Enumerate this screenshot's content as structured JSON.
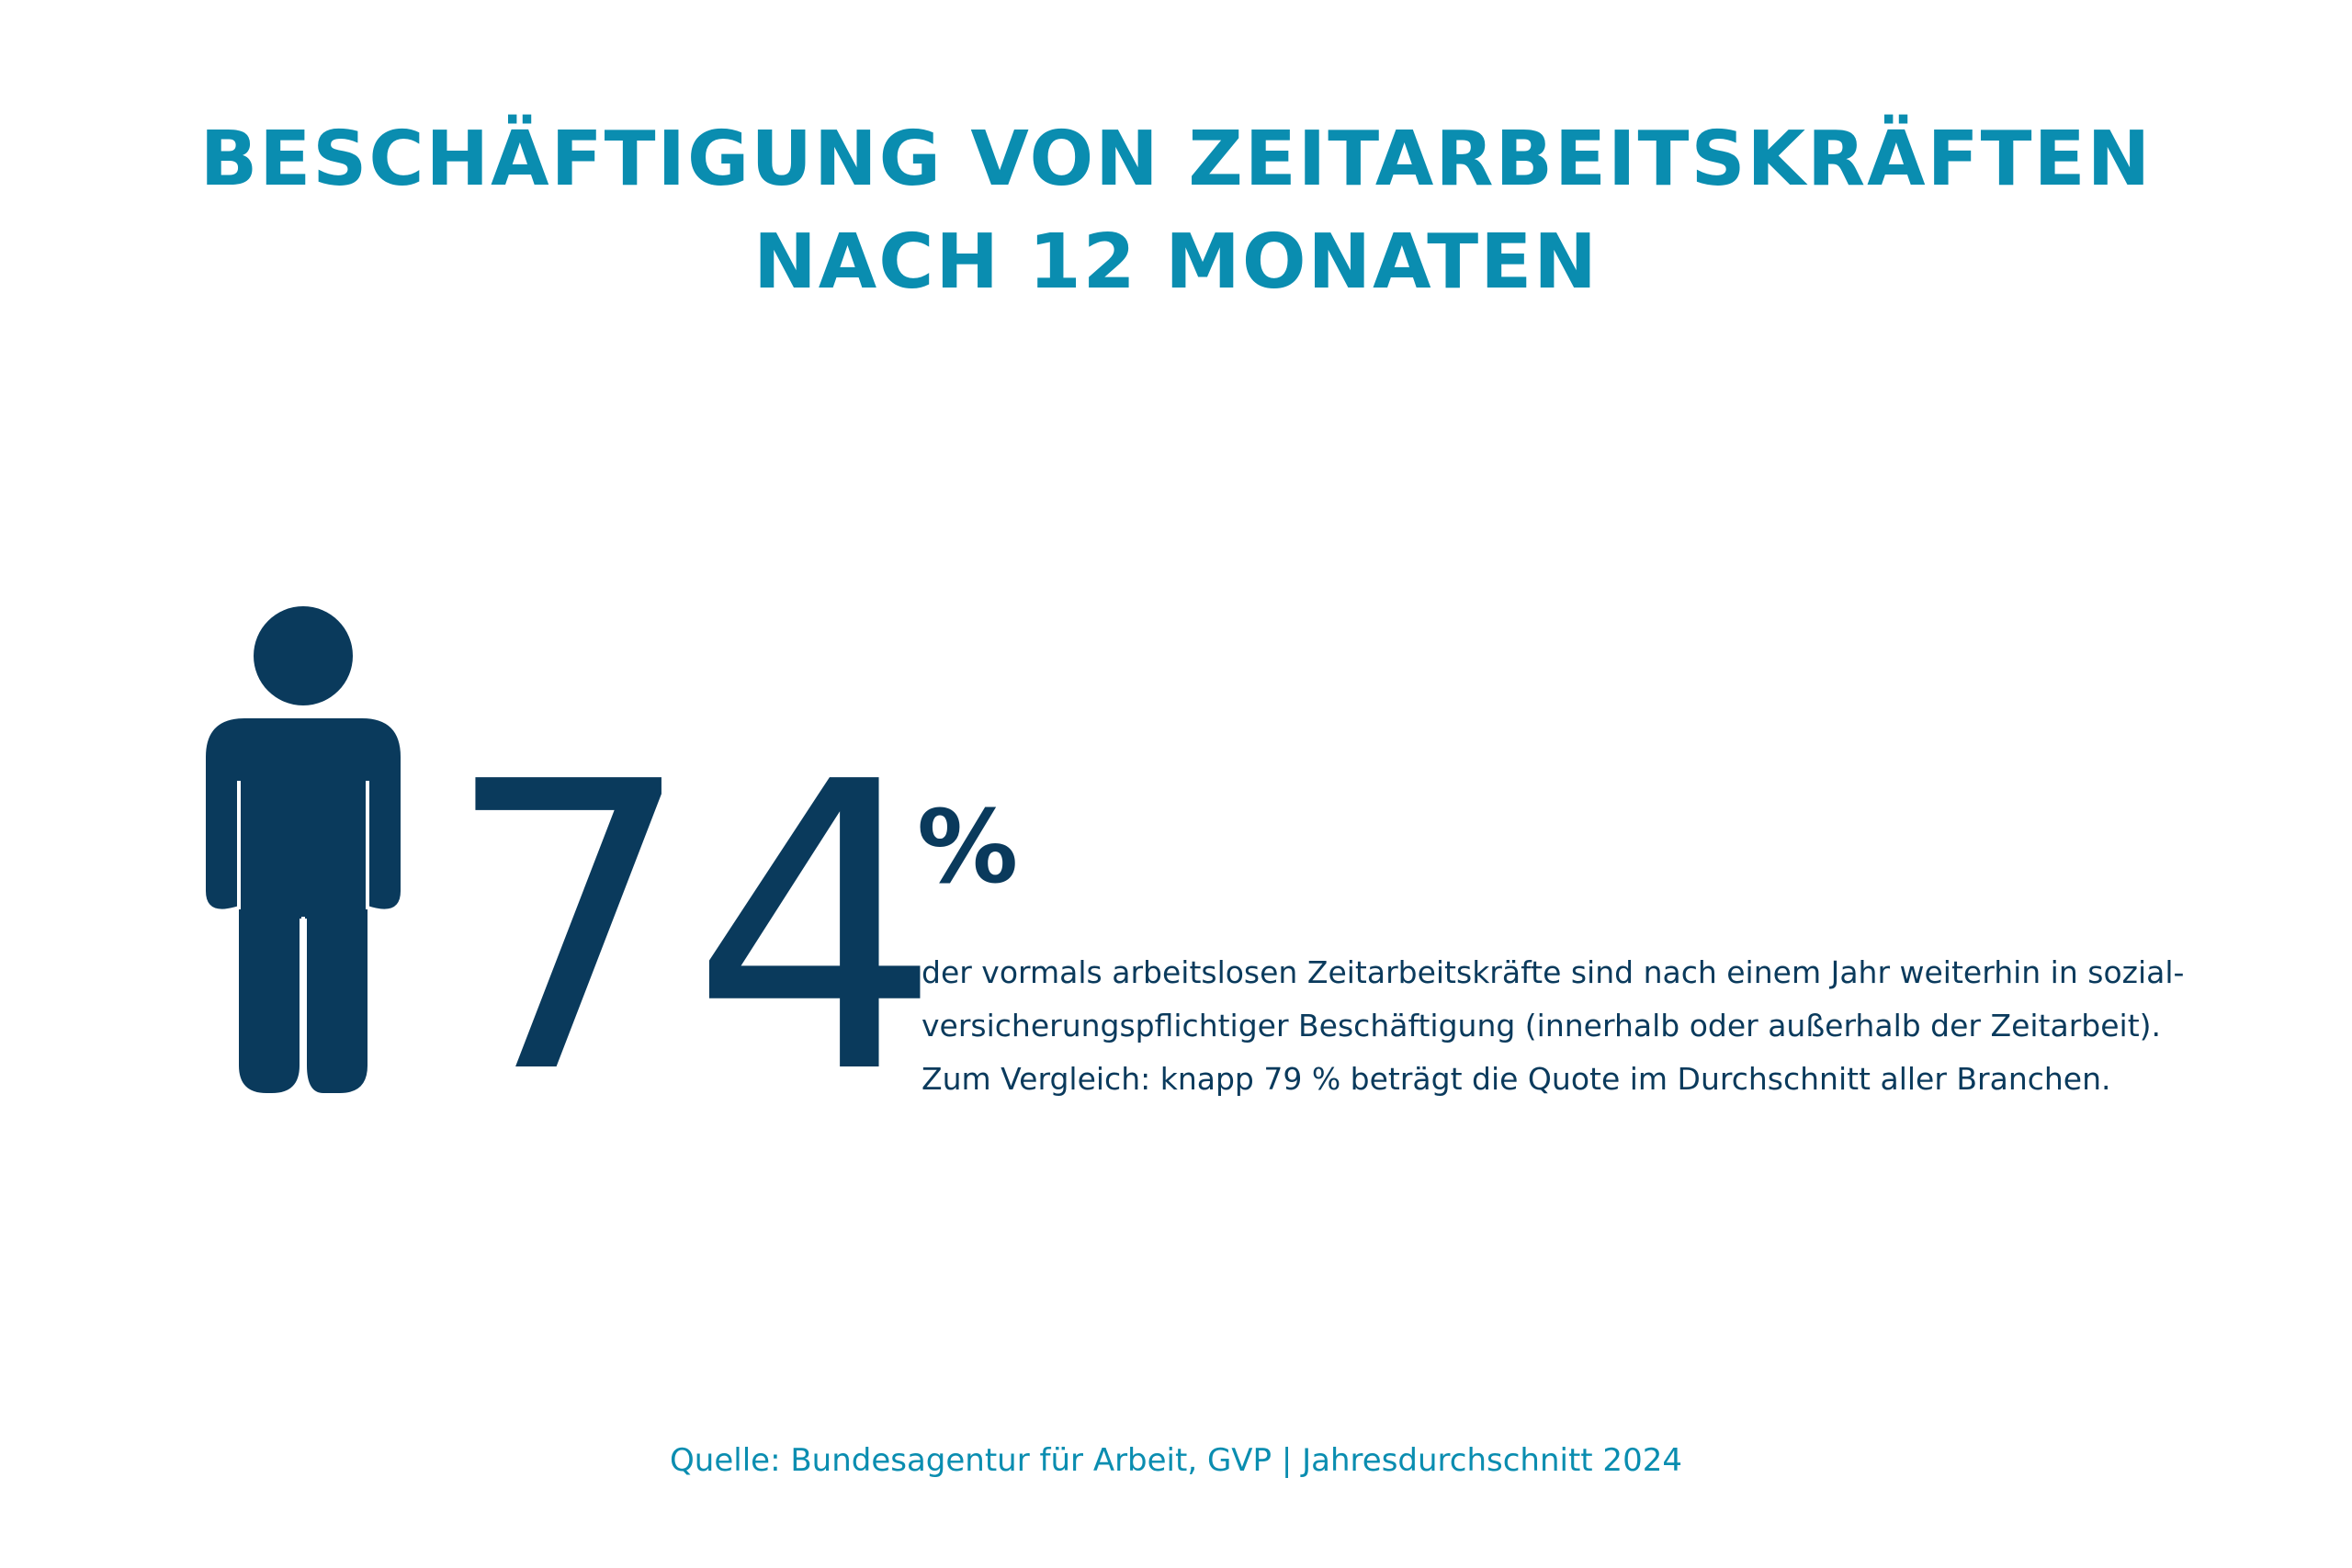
{
  "title": {
    "line1": "BESCHÄFTIGUNG VON ZEITARBEITSKRÄFTEN",
    "line2": "NACH 12 MONATEN"
  },
  "figure": {
    "icon": "person-icon",
    "value": "74",
    "unit": "%"
  },
  "description": {
    "line1": "der vormals arbeitslosen Zeitarbeitskräfte sind nach einem Jahr weiterhin in sozial-",
    "line2": "versicherungspflichtiger Beschäftigung (innerhalb oder außerhalb der Zeitarbeit).",
    "line3": "Zum Vergleich: knapp 79 % beträgt die Quote im Durchschnitt aller Branchen."
  },
  "source": "Quelle: Bundesagentur für Arbeit, GVP | Jahresdurchschnitt 2024",
  "colors": {
    "accent": "#0a8db0",
    "dark": "#0a3a5c",
    "background": "#ffffff"
  }
}
